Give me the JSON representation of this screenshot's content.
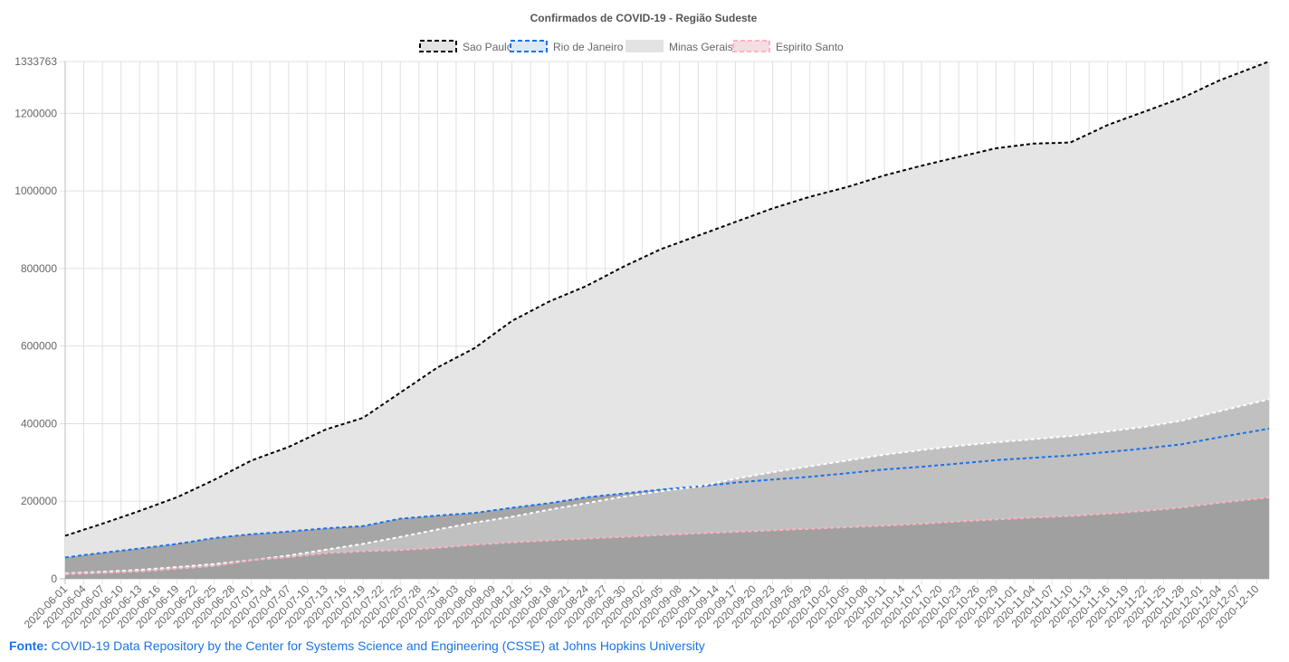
{
  "chart_data": {
    "type": "area",
    "title": "Confirmados de COVID-19 - Região Sudeste",
    "xlabel": "",
    "ylabel": "",
    "ylim": [
      0,
      1333763
    ],
    "y_ticks": [
      "0",
      "200000",
      "400000",
      "600000",
      "800000",
      "1000000",
      "1200000",
      "1333763"
    ],
    "x_start": "2020-06-01",
    "x_end": "2020-12-12",
    "x_tick_labels": [
      "2020-06-01",
      "2020-06-04",
      "2020-06-07",
      "2020-06-10",
      "2020-06-13",
      "2020-06-16",
      "2020-06-19",
      "2020-06-22",
      "2020-06-25",
      "2020-06-28",
      "2020-07-01",
      "2020-07-04",
      "2020-07-07",
      "2020-07-10",
      "2020-07-13",
      "2020-07-16",
      "2020-07-19",
      "2020-07-22",
      "2020-07-25",
      "2020-07-28",
      "2020-07-31",
      "2020-08-03",
      "2020-08-06",
      "2020-08-09",
      "2020-08-12",
      "2020-08-15",
      "2020-08-18",
      "2020-08-21",
      "2020-08-24",
      "2020-08-27",
      "2020-08-30",
      "2020-09-02",
      "2020-09-05",
      "2020-09-08",
      "2020-09-11",
      "2020-09-14",
      "2020-09-17",
      "2020-09-20",
      "2020-09-23",
      "2020-09-26",
      "2020-09-29",
      "2020-10-02",
      "2020-10-05",
      "2020-10-08",
      "2020-10-11",
      "2020-10-14",
      "2020-10-17",
      "2020-10-20",
      "2020-10-23",
      "2020-10-26",
      "2020-10-29",
      "2020-11-01",
      "2020-11-04",
      "2020-11-07",
      "2020-11-10",
      "2020-11-13",
      "2020-11-16",
      "2020-11-19",
      "2020-11-22",
      "2020-11-25",
      "2020-11-28",
      "2020-12-01",
      "2020-12-04",
      "2020-12-07",
      "2020-12-10"
    ],
    "grid": true,
    "legend": "top-center",
    "series": [
      {
        "name": "Sao Paulo",
        "border_color": "#000000",
        "fill_color": "#e5e5e5",
        "anchors": [
          [
            "2020-06-01",
            111000
          ],
          [
            "2020-06-07",
            142000
          ],
          [
            "2020-06-13",
            175000
          ],
          [
            "2020-06-19",
            210000
          ],
          [
            "2020-06-25",
            255000
          ],
          [
            "2020-07-01",
            305000
          ],
          [
            "2020-07-07",
            340000
          ],
          [
            "2020-07-13",
            385000
          ],
          [
            "2020-07-19",
            415000
          ],
          [
            "2020-07-25",
            480000
          ],
          [
            "2020-07-31",
            545000
          ],
          [
            "2020-08-06",
            595000
          ],
          [
            "2020-08-12",
            665000
          ],
          [
            "2020-08-18",
            715000
          ],
          [
            "2020-08-24",
            755000
          ],
          [
            "2020-08-30",
            805000
          ],
          [
            "2020-09-05",
            850000
          ],
          [
            "2020-09-11",
            885000
          ],
          [
            "2020-09-17",
            920000
          ],
          [
            "2020-09-23",
            955000
          ],
          [
            "2020-09-29",
            985000
          ],
          [
            "2020-10-05",
            1010000
          ],
          [
            "2020-10-11",
            1040000
          ],
          [
            "2020-10-17",
            1065000
          ],
          [
            "2020-10-23",
            1088000
          ],
          [
            "2020-10-29",
            1110000
          ],
          [
            "2020-11-04",
            1122000
          ],
          [
            "2020-11-10",
            1125000
          ],
          [
            "2020-11-16",
            1170000
          ],
          [
            "2020-11-22",
            1205000
          ],
          [
            "2020-11-28",
            1240000
          ],
          [
            "2020-12-04",
            1285000
          ],
          [
            "2020-12-12",
            1333763
          ]
        ]
      },
      {
        "name": "Rio de Janeiro",
        "border_color": "#1a73e8",
        "fill_color": "#a6a6a6",
        "anchors": [
          [
            "2020-06-01",
            55000
          ],
          [
            "2020-06-07",
            67000
          ],
          [
            "2020-06-13",
            78000
          ],
          [
            "2020-06-19",
            90000
          ],
          [
            "2020-06-25",
            105000
          ],
          [
            "2020-07-01",
            115000
          ],
          [
            "2020-07-07",
            122000
          ],
          [
            "2020-07-13",
            130000
          ],
          [
            "2020-07-19",
            136000
          ],
          [
            "2020-07-25",
            155000
          ],
          [
            "2020-07-31",
            163000
          ],
          [
            "2020-08-06",
            170000
          ],
          [
            "2020-08-12",
            183000
          ],
          [
            "2020-08-18",
            195000
          ],
          [
            "2020-08-24",
            210000
          ],
          [
            "2020-08-30",
            220000
          ],
          [
            "2020-09-05",
            230000
          ],
          [
            "2020-09-11",
            238000
          ],
          [
            "2020-09-17",
            248000
          ],
          [
            "2020-09-23",
            256000
          ],
          [
            "2020-09-29",
            263000
          ],
          [
            "2020-10-05",
            272000
          ],
          [
            "2020-10-11",
            282000
          ],
          [
            "2020-10-17",
            289000
          ],
          [
            "2020-10-23",
            297000
          ],
          [
            "2020-10-29",
            306000
          ],
          [
            "2020-11-04",
            312000
          ],
          [
            "2020-11-10",
            318000
          ],
          [
            "2020-11-16",
            327000
          ],
          [
            "2020-11-22",
            336000
          ],
          [
            "2020-11-28",
            347000
          ],
          [
            "2020-12-04",
            365000
          ],
          [
            "2020-12-12",
            387000
          ]
        ]
      },
      {
        "name": "Minas Gerais",
        "border_color": "#ffffff",
        "fill_color": "#c0c0c0",
        "anchors": [
          [
            "2020-06-01",
            14000
          ],
          [
            "2020-06-07",
            18000
          ],
          [
            "2020-06-13",
            23000
          ],
          [
            "2020-06-19",
            30000
          ],
          [
            "2020-06-25",
            38000
          ],
          [
            "2020-07-01",
            48000
          ],
          [
            "2020-07-07",
            60000
          ],
          [
            "2020-07-13",
            75000
          ],
          [
            "2020-07-19",
            90000
          ],
          [
            "2020-07-25",
            108000
          ],
          [
            "2020-07-31",
            127000
          ],
          [
            "2020-08-06",
            145000
          ],
          [
            "2020-08-12",
            160000
          ],
          [
            "2020-08-18",
            178000
          ],
          [
            "2020-08-24",
            195000
          ],
          [
            "2020-08-30",
            212000
          ],
          [
            "2020-09-05",
            226000
          ],
          [
            "2020-09-11",
            238000
          ],
          [
            "2020-09-17",
            258000
          ],
          [
            "2020-09-23",
            275000
          ],
          [
            "2020-09-29",
            290000
          ],
          [
            "2020-10-05",
            305000
          ],
          [
            "2020-10-11",
            320000
          ],
          [
            "2020-10-17",
            332000
          ],
          [
            "2020-10-23",
            343000
          ],
          [
            "2020-10-29",
            352000
          ],
          [
            "2020-11-04",
            360000
          ],
          [
            "2020-11-10",
            368000
          ],
          [
            "2020-11-16",
            380000
          ],
          [
            "2020-11-22",
            392000
          ],
          [
            "2020-11-28",
            408000
          ],
          [
            "2020-12-04",
            432000
          ],
          [
            "2020-12-12",
            463000
          ]
        ]
      },
      {
        "name": "Espirito Santo",
        "border_color": "#ffb3c1",
        "fill_color": "#a0a0a0",
        "anchors": [
          [
            "2020-06-01",
            12000
          ],
          [
            "2020-06-07",
            15000
          ],
          [
            "2020-06-13",
            19000
          ],
          [
            "2020-06-19",
            26000
          ],
          [
            "2020-06-25",
            33000
          ],
          [
            "2020-07-01",
            48000
          ],
          [
            "2020-07-07",
            56000
          ],
          [
            "2020-07-13",
            66000
          ],
          [
            "2020-07-19",
            71000
          ],
          [
            "2020-07-25",
            74000
          ],
          [
            "2020-07-31",
            80000
          ],
          [
            "2020-08-06",
            88000
          ],
          [
            "2020-08-12",
            94000
          ],
          [
            "2020-08-18",
            99000
          ],
          [
            "2020-08-24",
            104000
          ],
          [
            "2020-08-30",
            108000
          ],
          [
            "2020-09-05",
            113000
          ],
          [
            "2020-09-11",
            117000
          ],
          [
            "2020-09-17",
            121000
          ],
          [
            "2020-09-23",
            125000
          ],
          [
            "2020-09-29",
            129000
          ],
          [
            "2020-10-05",
            133000
          ],
          [
            "2020-10-11",
            137000
          ],
          [
            "2020-10-17",
            142000
          ],
          [
            "2020-10-23",
            148000
          ],
          [
            "2020-10-29",
            153000
          ],
          [
            "2020-11-04",
            158000
          ],
          [
            "2020-11-10",
            162000
          ],
          [
            "2020-11-16",
            168000
          ],
          [
            "2020-11-22",
            175000
          ],
          [
            "2020-11-28",
            184000
          ],
          [
            "2020-12-04",
            196000
          ],
          [
            "2020-12-12",
            210000
          ]
        ]
      }
    ]
  },
  "source": {
    "label": "Fonte:",
    "link_text": "COVID-19 Data Repository by the Center for Systems Science and Engineering (CSSE) at Johns Hopkins University"
  }
}
